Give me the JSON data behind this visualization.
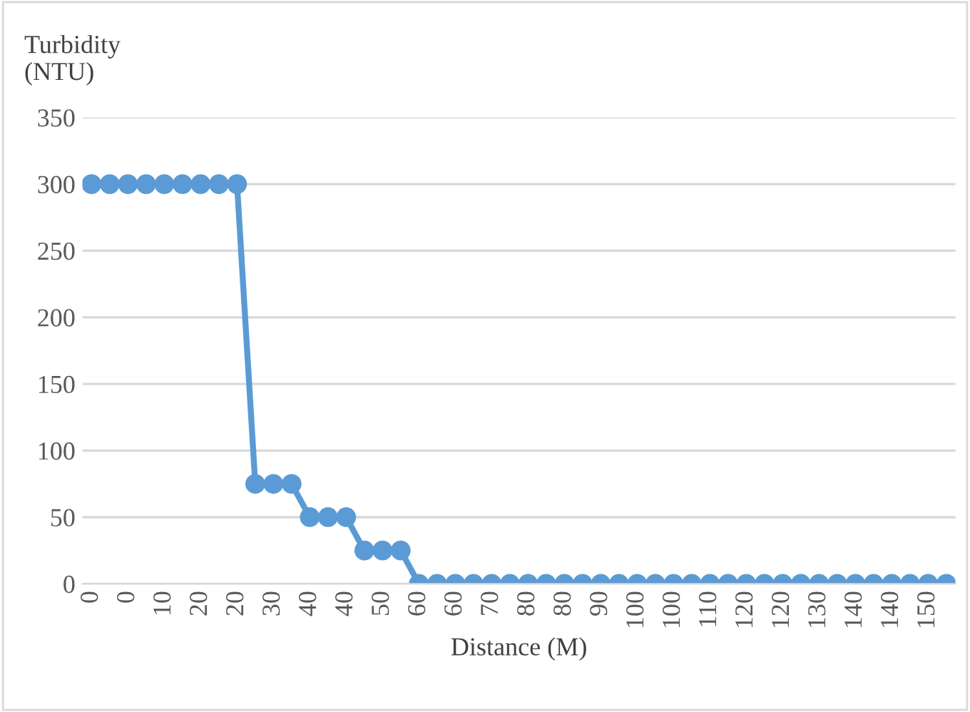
{
  "chart_data": {
    "type": "line",
    "xlabel": "Distance (M)",
    "ylabel": "Turbidity\n(NTU)",
    "categories": [
      "0",
      null,
      "0",
      null,
      "10",
      null,
      "20",
      null,
      "20",
      null,
      "30",
      null,
      "40",
      null,
      "40",
      null,
      "50",
      null,
      "60",
      null,
      "60",
      null,
      "70",
      null,
      "80",
      null,
      "80",
      null,
      "90",
      null,
      "100",
      null,
      "100",
      null,
      "110",
      null,
      "120",
      null,
      "120",
      null,
      "130",
      null,
      "140",
      null,
      "140",
      null,
      "150",
      null
    ],
    "series": [
      {
        "color": "#5b9bd5",
        "values": [
          300,
          300,
          300,
          300,
          300,
          300,
          300,
          300,
          300,
          75,
          75,
          75,
          50,
          50,
          50,
          25,
          25,
          25,
          0,
          0,
          0,
          0,
          0,
          0,
          0,
          0,
          0,
          0,
          0,
          0,
          0,
          0,
          0,
          0,
          0,
          0,
          0,
          0,
          0,
          0,
          0,
          0,
          0,
          0,
          0,
          0,
          0,
          0
        ]
      }
    ],
    "ylim": [
      0,
      350
    ],
    "yticks": [
      0,
      50,
      100,
      150,
      200,
      250,
      300,
      350
    ],
    "grid": "y",
    "marker": "circle",
    "line_style": "solid",
    "legend": false
  }
}
